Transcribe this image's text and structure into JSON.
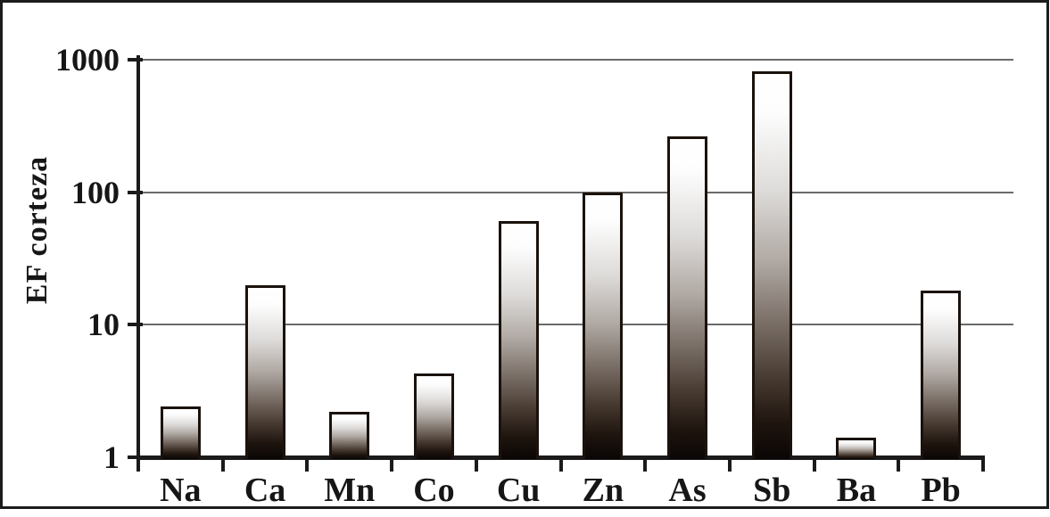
{
  "colors": {
    "background": "#ffffff",
    "frame_border": "#1c1c1c",
    "axis": "#1b1b1b",
    "gridline": "#6a6a6a",
    "text": "#161616",
    "bar_outline": "#1a120c",
    "bar_gradient_top": "#ffffff",
    "bar_gradient_bottom": "#000000"
  },
  "chart_data": {
    "type": "bar",
    "categories": [
      "Na",
      "Ca",
      "Mn",
      "Co",
      "Cu",
      "Zn",
      "As",
      "Sb",
      "Ba",
      "Pb"
    ],
    "values": [
      2.4,
      20,
      2.2,
      4.3,
      61,
      100,
      265,
      820,
      1.4,
      18
    ],
    "title": "",
    "xlabel": "",
    "ylabel": "EF corteza",
    "y_scale": "log",
    "ylim": [
      1,
      1000
    ],
    "yticks": [
      1,
      10,
      100,
      1000
    ],
    "grid": "horizontal gridlines at each decade",
    "legend": "none",
    "bar_fill": "vertical gradient, white at bar top fading to black at bar base"
  }
}
